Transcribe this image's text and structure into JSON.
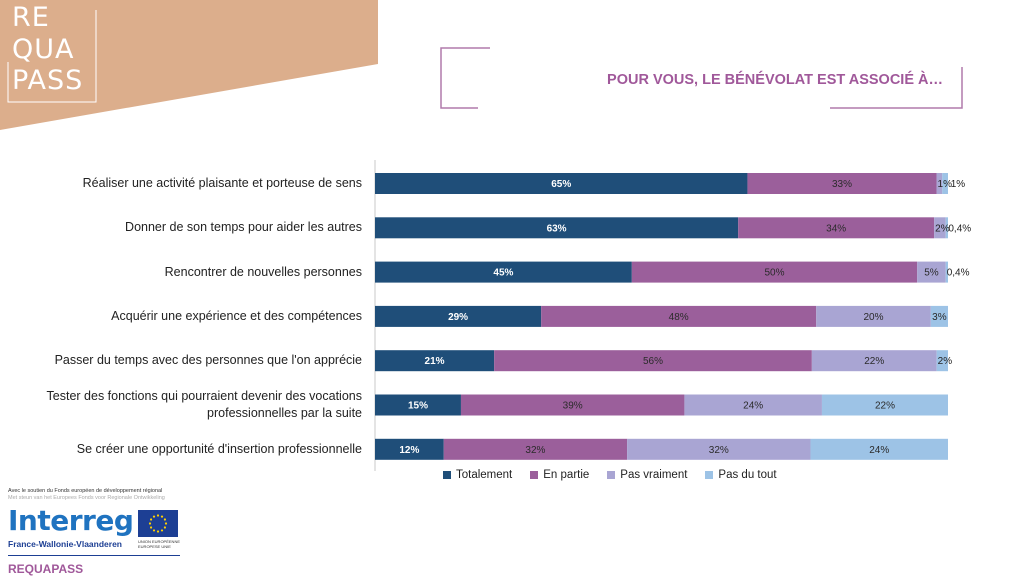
{
  "logo": {
    "lines": [
      "RE",
      "QUA",
      "PASS"
    ]
  },
  "title": "POUR VOUS, LE BÉNÉVOLAT EST ASSOCIÉ À…",
  "colors": {
    "logo_bg": "#dcae8c",
    "accent": "#a0589a",
    "frame": "#b07aab",
    "totalement": "#1f4e79",
    "en_partie": "#9b5f9b",
    "pas_vraiment": "#a9a5d3",
    "pas_du_tout": "#9dc3e6"
  },
  "chart_data": {
    "type": "bar",
    "orientation": "horizontal-stacked-100",
    "categories": [
      "Réaliser une activité plaisante et porteuse de sens",
      "Donner de son temps pour aider les autres",
      "Rencontrer de nouvelles personnes",
      "Acquérir une expérience et des compétences",
      "Passer du temps avec des personnes que l'on apprécie",
      "Tester des fonctions qui pourraient devenir des vocations professionnelles par la suite",
      "Se créer une opportunité d'insertion professionnelle"
    ],
    "series": [
      {
        "name": "Totalement",
        "values": [
          65,
          63,
          45,
          29,
          21,
          15,
          12
        ],
        "labels": [
          "65%",
          "63%",
          "45%",
          "29%",
          "21%",
          "15%",
          "12%"
        ]
      },
      {
        "name": "En partie",
        "values": [
          33,
          34,
          50,
          48,
          56,
          39,
          32
        ],
        "labels": [
          "33%",
          "34%",
          "50%",
          "48%",
          "56%",
          "39%",
          "32%"
        ]
      },
      {
        "name": "Pas vraiment",
        "values": [
          1,
          2,
          5,
          20,
          22,
          24,
          32
        ],
        "labels": [
          "1%",
          "2%",
          "5%",
          "20%",
          "22%",
          "24%",
          "32%"
        ]
      },
      {
        "name": "Pas du tout",
        "values": [
          1,
          0.4,
          0.4,
          3,
          2,
          22,
          24
        ],
        "labels": [
          "1%",
          "0,4%",
          "0,4%",
          "3%",
          "2%",
          "22%",
          "24%"
        ]
      }
    ],
    "xlim": [
      0,
      100
    ],
    "legend_position": "bottom"
  },
  "footer": {
    "support_line_1": "Avec le soutien du Fonds européen de développement régional",
    "support_line_2": "Met steun van het Europees Fonds voor Regionale Ontwikkeling",
    "brand": "Interreg",
    "region": "France-Wallonie-Vlaanderen",
    "eu_line_1": "UNION EUROPÉENNE",
    "eu_line_2": "EUROPESE UNIE",
    "project": "REQUAPASS"
  }
}
